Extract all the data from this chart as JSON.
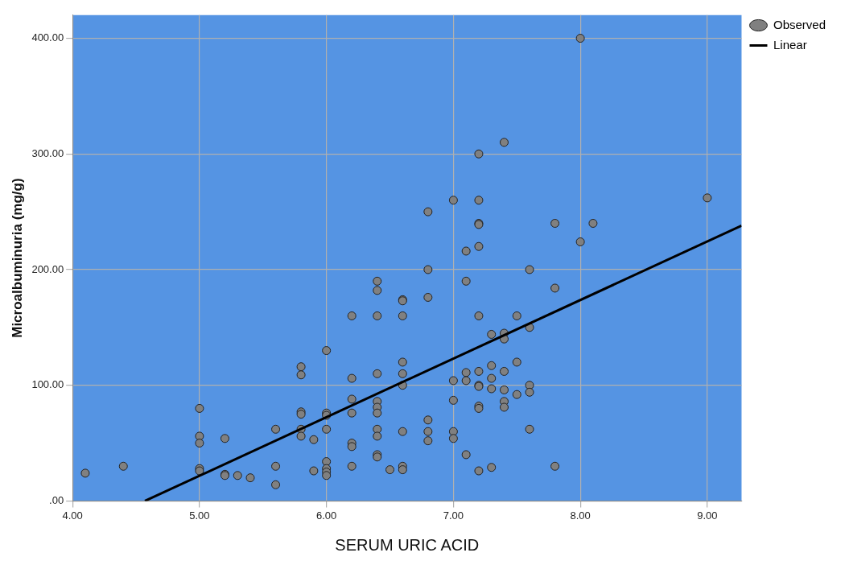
{
  "chart_data": {
    "type": "scatter",
    "xlabel": "SERUM URIC ACID",
    "ylabel": "Microalbuminuria (mg/g)",
    "xlim": [
      4,
      9.27
    ],
    "ylim": [
      0,
      420
    ],
    "xticks": [
      {
        "value": 4,
        "label": "4.00"
      },
      {
        "value": 5,
        "label": "5.00"
      },
      {
        "value": 6,
        "label": "6.00"
      },
      {
        "value": 7,
        "label": "7.00"
      },
      {
        "value": 8,
        "label": "8.00"
      },
      {
        "value": 9,
        "label": "9.00"
      }
    ],
    "yticks": [
      {
        "value": 0,
        "label": ".00"
      },
      {
        "value": 100,
        "label": "100.00"
      },
      {
        "value": 200,
        "label": "200.00"
      },
      {
        "value": 300,
        "label": "300.00"
      },
      {
        "value": 400,
        "label": "400.00"
      }
    ],
    "grid": true,
    "legend": "top right",
    "series": [
      {
        "name": "Observed",
        "type": "scatter",
        "color": "#808080",
        "marker": "circle",
        "x": [
          4.1,
          4.4,
          5.0,
          5.0,
          5.0,
          5.0,
          5.0,
          5.2,
          5.2,
          5.2,
          5.3,
          5.4,
          5.6,
          5.6,
          5.6,
          5.8,
          5.8,
          5.8,
          5.8,
          5.8,
          5.8,
          5.9,
          5.9,
          6.0,
          6.0,
          6.0,
          6.0,
          6.0,
          6.0,
          6.0,
          6.0,
          6.2,
          6.2,
          6.2,
          6.2,
          6.2,
          6.2,
          6.2,
          6.4,
          6.4,
          6.4,
          6.4,
          6.4,
          6.4,
          6.4,
          6.4,
          6.4,
          6.4,
          6.4,
          6.5,
          6.6,
          6.6,
          6.6,
          6.6,
          6.6,
          6.6,
          6.6,
          6.6,
          6.6,
          6.8,
          6.8,
          6.8,
          6.8,
          6.8,
          6.8,
          7.0,
          7.0,
          7.0,
          7.0,
          7.0,
          7.1,
          7.1,
          7.1,
          7.1,
          7.1,
          7.2,
          7.2,
          7.2,
          7.2,
          7.2,
          7.2,
          7.2,
          7.2,
          7.2,
          7.2,
          7.2,
          7.2,
          7.3,
          7.3,
          7.3,
          7.3,
          7.3,
          7.4,
          7.4,
          7.4,
          7.4,
          7.4,
          7.4,
          7.4,
          7.5,
          7.5,
          7.5,
          7.6,
          7.6,
          7.6,
          7.6,
          7.6,
          7.8,
          7.8,
          7.8,
          8.0,
          8.0,
          8.1,
          9.0
        ],
        "values": [
          24,
          30,
          80,
          56,
          50,
          28,
          26,
          54,
          23,
          22,
          22,
          20,
          62,
          30,
          14,
          116,
          109,
          77,
          75,
          62,
          56,
          53,
          26,
          130,
          76,
          74,
          62,
          34,
          28,
          25,
          22,
          160,
          106,
          88,
          76,
          50,
          47,
          30,
          190,
          182,
          160,
          110,
          86,
          81,
          76,
          62,
          56,
          40,
          38,
          27,
          174,
          173,
          160,
          120,
          110,
          100,
          60,
          30,
          27,
          250,
          200,
          176,
          70,
          60,
          52,
          260,
          104,
          87,
          60,
          54,
          216,
          190,
          111,
          104,
          40,
          300,
          260,
          240,
          239,
          220,
          160,
          112,
          100,
          99,
          82,
          80,
          26,
          144,
          117,
          106,
          97,
          29,
          310,
          145,
          140,
          112,
          96,
          86,
          81,
          160,
          120,
          92,
          200,
          150,
          100,
          94,
          62,
          240,
          184,
          30,
          400,
          224,
          240,
          262
        ]
      },
      {
        "name": "Linear",
        "type": "line",
        "color": "#000000",
        "marker": "none",
        "x": [
          4.57,
          9.27
        ],
        "values": [
          0,
          238
        ]
      }
    ]
  }
}
